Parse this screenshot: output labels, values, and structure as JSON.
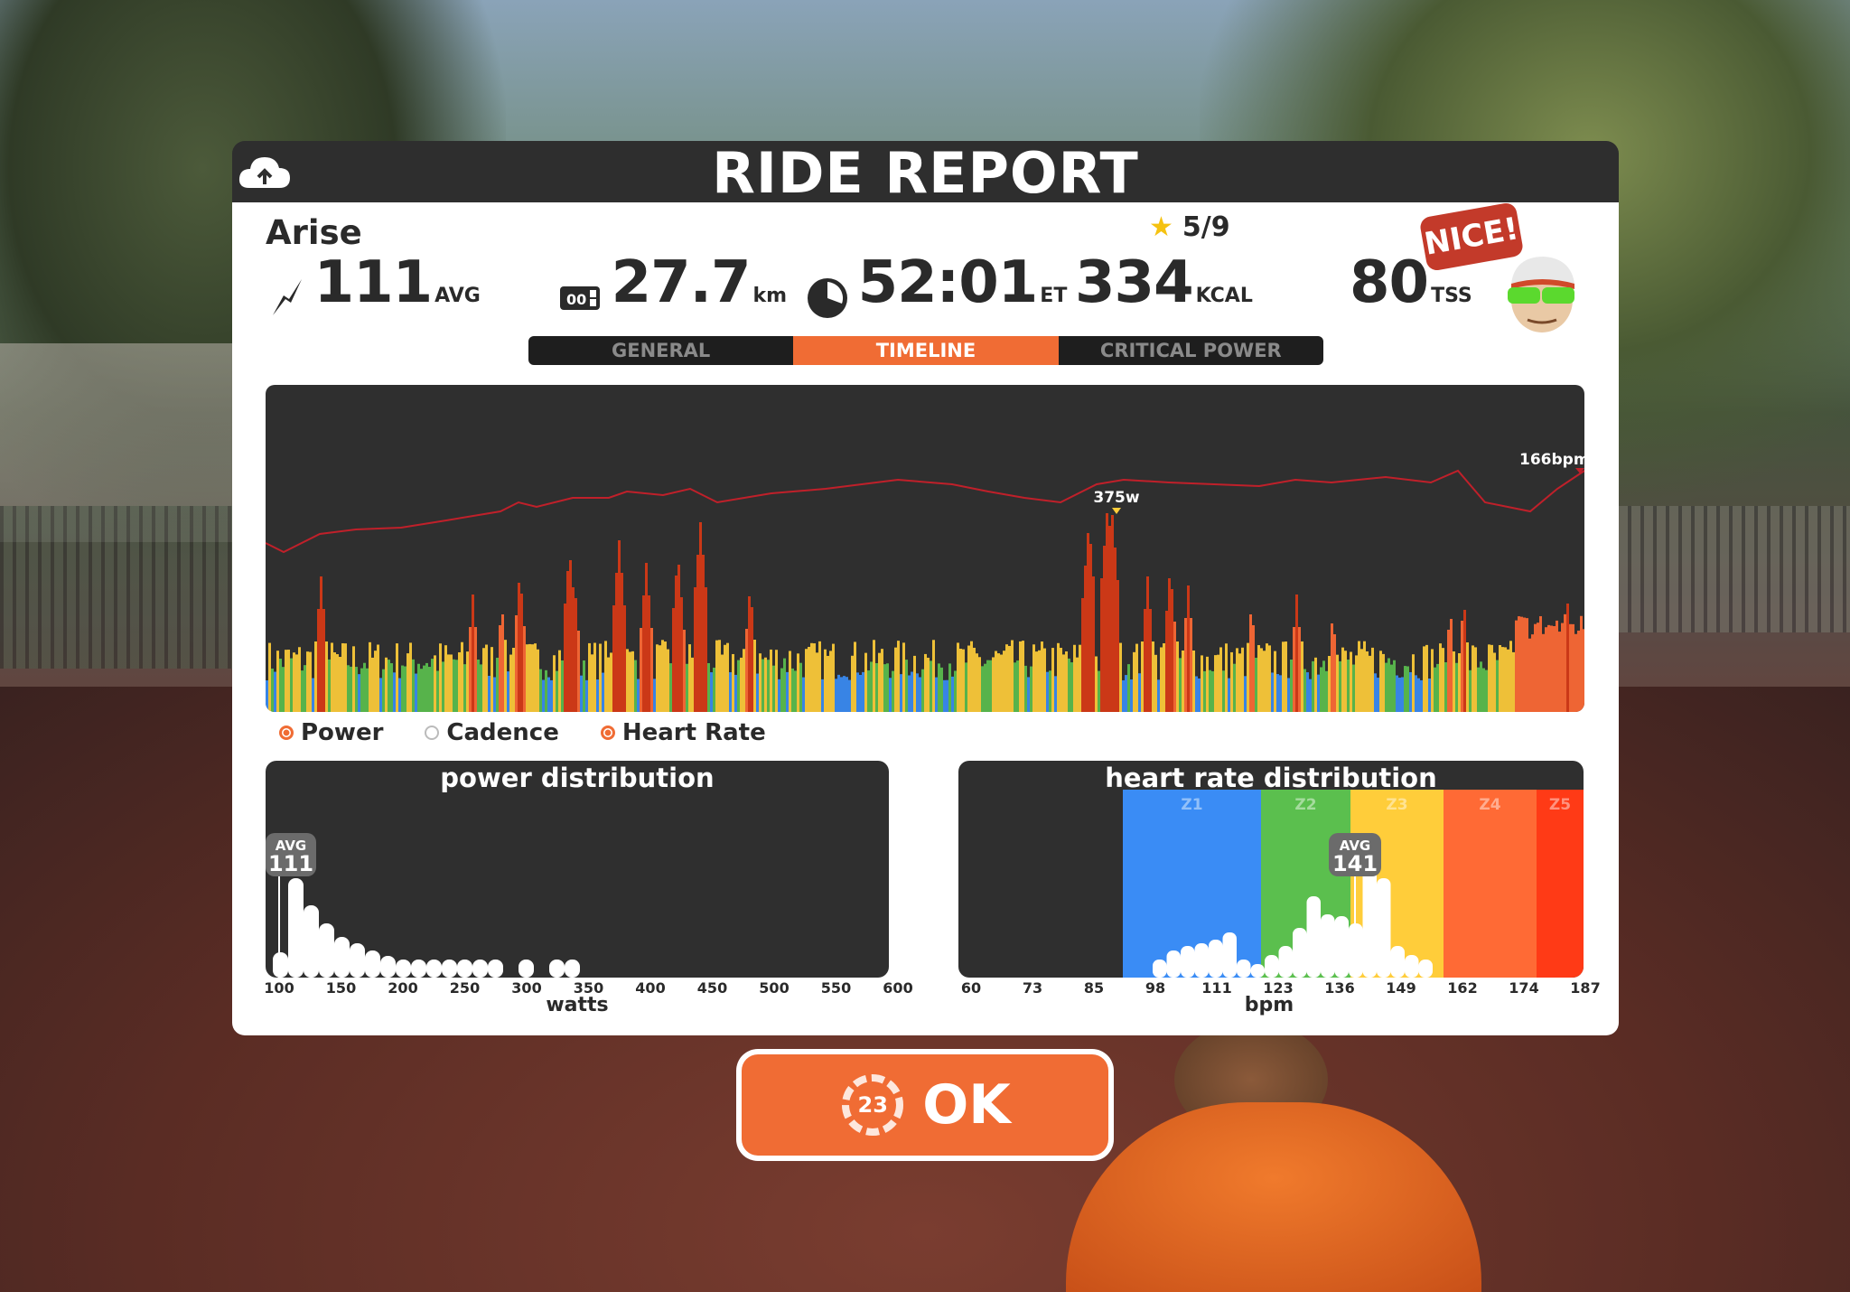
{
  "header": {
    "title": "RIDE REPORT"
  },
  "rider": {
    "name": "Arise",
    "stars": "5/9",
    "badge": "NICE!"
  },
  "stats": {
    "power": {
      "value": "111",
      "unit": "AVG"
    },
    "distance": {
      "value": "27.7",
      "unit": "km"
    },
    "time": {
      "value": "52:01",
      "unit": "ET"
    },
    "calories": {
      "value": "334",
      "unit": "KCAL"
    },
    "tss": {
      "value": "80",
      "unit": "TSS"
    }
  },
  "tabs": [
    {
      "label": "GENERAL",
      "active": false
    },
    {
      "label": "TIMELINE",
      "active": true
    },
    {
      "label": "CRITICAL POWER",
      "active": false
    }
  ],
  "timeline": {
    "peak_power_label": "375w",
    "hr_end_label": "166bpm"
  },
  "legend": [
    {
      "label": "Power",
      "selected": true
    },
    {
      "label": "Cadence",
      "selected": false
    },
    {
      "label": "Heart Rate",
      "selected": true
    }
  ],
  "power_distribution": {
    "title": "power distribution",
    "avg_label": "AVG",
    "avg_value": "111",
    "x_label": "watts",
    "ticks": [
      "100",
      "150",
      "200",
      "250",
      "300",
      "350",
      "400",
      "450",
      "500",
      "550",
      "600"
    ]
  },
  "hr_distribution": {
    "title": "heart rate distribution",
    "avg_label": "AVG",
    "avg_value": "141",
    "x_label": "bpm",
    "ticks": [
      "60",
      "73",
      "85",
      "98",
      "111",
      "123",
      "136",
      "149",
      "162",
      "174",
      "187"
    ],
    "zones": [
      {
        "label": "Z1",
        "color": "#3a8cf5"
      },
      {
        "label": "Z2",
        "color": "#5bbf4e"
      },
      {
        "label": "Z3",
        "color": "#ffcd3a"
      },
      {
        "label": "Z4",
        "color": "#ff6a35"
      },
      {
        "label": "Z5",
        "color": "#ff3a16"
      }
    ]
  },
  "ok_button": {
    "label": "OK",
    "countdown": "23"
  },
  "colors": {
    "accent": "#f06c34",
    "panel_dark": "#2e2e2e",
    "hr_line": "#c0202a"
  }
}
